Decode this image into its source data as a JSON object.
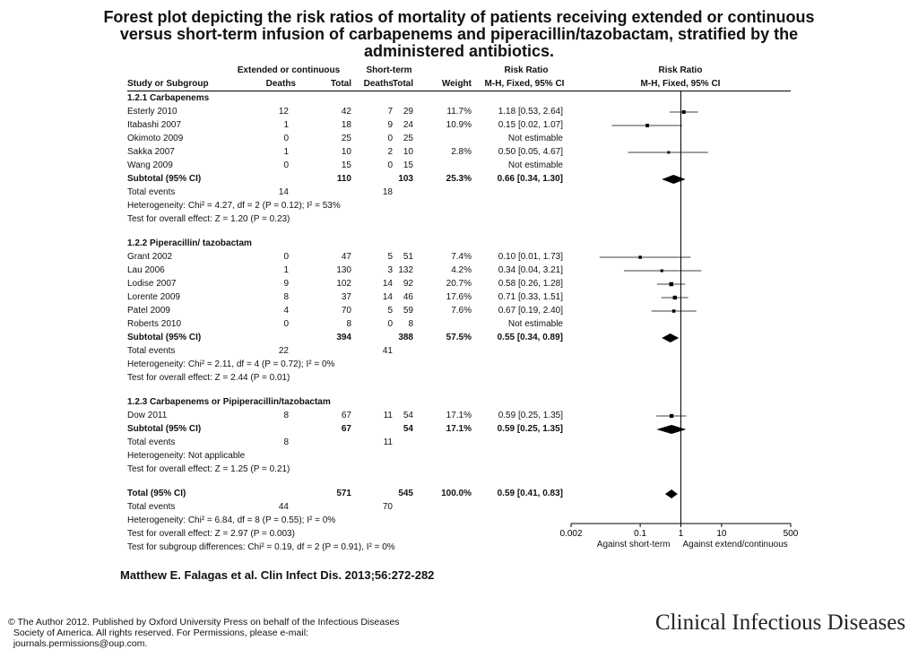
{
  "title_lines": [
    "Forest plot depicting the risk ratios of mortality of patients receiving extended or continuous",
    "versus short-term infusion of carbapenems and piperacillin/tazobactam, stratified by the",
    "administered antibiotics."
  ],
  "headers": {
    "group1": "Extended or continuous",
    "group2": "Short-term",
    "rr_text": "Risk Ratio",
    "rr_plot": "Risk Ratio",
    "study": "Study or Subgroup",
    "deaths1": "Deaths",
    "total1": "Total",
    "deaths2": "Deaths",
    "total2": "Total",
    "weight": "Weight",
    "method_text": "M-H, Fixed, 95% CI",
    "method_plot": "M-H, Fixed, 95% CI"
  },
  "chart_data": {
    "type": "forest",
    "x_scale": "log",
    "xlim": [
      0.002,
      500
    ],
    "x_ticks": [
      {
        "value": 0.002,
        "label": "0.002"
      },
      {
        "value": 0.1,
        "label": "0.1"
      },
      {
        "value": 1,
        "label": "1"
      },
      {
        "value": 10,
        "label": "10"
      },
      {
        "value": 500,
        "label": "500"
      }
    ],
    "favours_left": "Against short-term",
    "favours_right": "Against extend/continuous",
    "groups": [
      {
        "heading": "1.2.1 Carbapenems",
        "studies": [
          {
            "name": "Esterly 2010",
            "d1": "12",
            "n1": "42",
            "d2": "7",
            "n2": "29",
            "weight": "11.7%",
            "ci_text": "1.18 [0.53, 2.64]",
            "rr": 1.18,
            "lo": 0.53,
            "hi": 2.64,
            "w": 11.7
          },
          {
            "name": "Itabashi 2007",
            "d1": "1",
            "n1": "18",
            "d2": "9",
            "n2": "24",
            "weight": "10.9%",
            "ci_text": "0.15 [0.02, 1.07]",
            "rr": 0.15,
            "lo": 0.02,
            "hi": 1.07,
            "w": 10.9
          },
          {
            "name": "Okimoto 2009",
            "d1": "0",
            "n1": "25",
            "d2": "0",
            "n2": "25",
            "weight": "",
            "ci_text": "Not estimable",
            "rr": null,
            "lo": null,
            "hi": null,
            "w": 0
          },
          {
            "name": "Sakka 2007",
            "d1": "1",
            "n1": "10",
            "d2": "2",
            "n2": "10",
            "weight": "2.8%",
            "ci_text": "0.50 [0.05, 4.67]",
            "rr": 0.5,
            "lo": 0.05,
            "hi": 4.67,
            "w": 2.8
          },
          {
            "name": "Wang 2009",
            "d1": "0",
            "n1": "15",
            "d2": "0",
            "n2": "15",
            "weight": "",
            "ci_text": "Not estimable",
            "rr": null,
            "lo": null,
            "hi": null,
            "w": 0
          }
        ],
        "subtotal": {
          "label": "Subtotal (95% CI)",
          "n1": "110",
          "n2": "103",
          "weight": "25.3%",
          "ci_text": "0.66 [0.34, 1.30]",
          "rr": 0.66,
          "lo": 0.34,
          "hi": 1.3
        },
        "total_events": {
          "label": "Total events",
          "e1": "14",
          "e2": "18"
        },
        "heterogeneity": "Heterogeneity: Chi² = 4.27, df = 2 (P = 0.12); I² = 53%",
        "overall": "Test for overall effect: Z = 1.20 (P = 0.23)"
      },
      {
        "heading": "1.2.2 Piperacillin/ tazobactam",
        "studies": [
          {
            "name": "Grant 2002",
            "d1": "0",
            "n1": "47",
            "d2": "5",
            "n2": "51",
            "weight": "7.4%",
            "ci_text": "0.10 [0.01, 1.73]",
            "rr": 0.1,
            "lo": 0.01,
            "hi": 1.73,
            "w": 7.4
          },
          {
            "name": "Lau 2006",
            "d1": "1",
            "n1": "130",
            "d2": "3",
            "n2": "132",
            "weight": "4.2%",
            "ci_text": "0.34 [0.04, 3.21]",
            "rr": 0.34,
            "lo": 0.04,
            "hi": 3.21,
            "w": 4.2
          },
          {
            "name": "Lodise 2007",
            "d1": "9",
            "n1": "102",
            "d2": "14",
            "n2": "92",
            "weight": "20.7%",
            "ci_text": "0.58 [0.26, 1.28]",
            "rr": 0.58,
            "lo": 0.26,
            "hi": 1.28,
            "w": 20.7
          },
          {
            "name": "Lorente 2009",
            "d1": "8",
            "n1": "37",
            "d2": "14",
            "n2": "46",
            "weight": "17.6%",
            "ci_text": "0.71 [0.33, 1.51]",
            "rr": 0.71,
            "lo": 0.33,
            "hi": 1.51,
            "w": 17.6
          },
          {
            "name": "Patel 2009",
            "d1": "4",
            "n1": "70",
            "d2": "5",
            "n2": "59",
            "weight": "7.6%",
            "ci_text": "0.67 [0.19, 2.40]",
            "rr": 0.67,
            "lo": 0.19,
            "hi": 2.4,
            "w": 7.6
          },
          {
            "name": "Roberts 2010",
            "d1": "0",
            "n1": "8",
            "d2": "0",
            "n2": "8",
            "weight": "",
            "ci_text": "Not estimable",
            "rr": null,
            "lo": null,
            "hi": null,
            "w": 0
          }
        ],
        "subtotal": {
          "label": "Subtotal (95% CI)",
          "n1": "394",
          "n2": "388",
          "weight": "57.5%",
          "ci_text": "0.55 [0.34, 0.89]",
          "rr": 0.55,
          "lo": 0.34,
          "hi": 0.89
        },
        "total_events": {
          "label": "Total events",
          "e1": "22",
          "e2": "41"
        },
        "heterogeneity": "Heterogeneity: Chi² = 2.11, df = 4 (P = 0.72); I² = 0%",
        "overall": "Test for overall effect: Z = 2.44 (P = 0.01)"
      },
      {
        "heading": "1.2.3 Carbapenems or Pipiperacillin/tazobactam",
        "studies": [
          {
            "name": "Dow 2011",
            "d1": "8",
            "n1": "67",
            "d2": "11",
            "n2": "54",
            "weight": "17.1%",
            "ci_text": "0.59 [0.25, 1.35]",
            "rr": 0.59,
            "lo": 0.25,
            "hi": 1.35,
            "w": 17.1
          }
        ],
        "subtotal": {
          "label": "Subtotal (95% CI)",
          "n1": "67",
          "n2": "54",
          "weight": "17.1%",
          "ci_text": "0.59 [0.25, 1.35]",
          "rr": 0.59,
          "lo": 0.25,
          "hi": 1.35
        },
        "total_events": {
          "label": "Total events",
          "e1": "8",
          "e2": "11"
        },
        "heterogeneity": "Heterogeneity: Not applicable",
        "overall": "Test for overall effect: Z = 1.25 (P = 0.21)"
      }
    ],
    "total": {
      "label": "Total (95% CI)",
      "n1": "571",
      "n2": "545",
      "weight": "100.0%",
      "ci_text": "0.59 [0.41, 0.83]",
      "rr": 0.59,
      "lo": 0.41,
      "hi": 0.83
    },
    "total_events": {
      "label": "Total events",
      "e1": "44",
      "e2": "70"
    },
    "heterogeneity": "Heterogeneity: Chi² = 6.84, df = 8 (P = 0.55); I² = 0%",
    "overall": "Test for overall effect: Z = 2.97 (P = 0.003)",
    "subgroup_diff": "Test for subgroup differences: Chi² = 0.19, df = 2 (P = 0.91), I² = 0%"
  },
  "citation": "Matthew E. Falagas et al. Clin Infect Dis. 2013;56:272-282",
  "copyright_lines": [
    "© The Author 2012. Published by Oxford University Press on behalf of the Infectious Diseases",
    "  Society of America. All rights reserved. For Permissions, please e-mail:",
    "  journals.permissions@oup.com."
  ],
  "journal_name": "Clinical Infectious Diseases"
}
